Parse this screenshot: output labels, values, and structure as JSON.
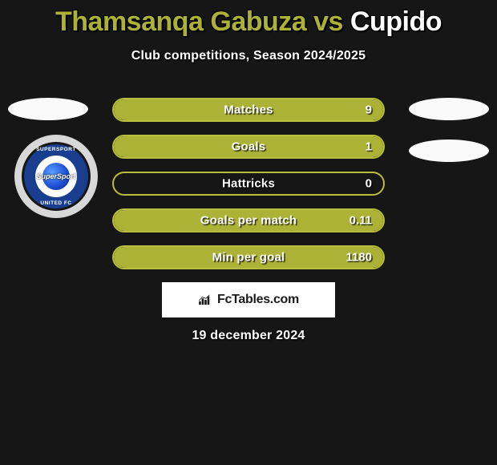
{
  "title": {
    "left": "Thamsanqa Gabuza",
    "vs": " vs ",
    "right": "Cupido"
  },
  "subtitle": "Club competitions, Season 2024/2025",
  "accent": {
    "title_left": "#acb236",
    "title_right": "#ffffff",
    "bar_fill": "#acb236",
    "bar_border": "#b7bd3d"
  },
  "stats": [
    {
      "label": "Matches",
      "value": "9",
      "fill_pct": 100
    },
    {
      "label": "Goals",
      "value": "1",
      "fill_pct": 100
    },
    {
      "label": "Hattricks",
      "value": "0",
      "fill_pct": 0
    },
    {
      "label": "Goals per match",
      "value": "0.11",
      "fill_pct": 100
    },
    {
      "label": "Min per goal",
      "value": "1180",
      "fill_pct": 100
    }
  ],
  "left_club": {
    "name": "SuperSport United FC",
    "text_top": "SUPERSPORT",
    "text_bottom": "UNITED FC",
    "banner": "SuperSport"
  },
  "brand": "FcTables.com",
  "date": "19 december 2024"
}
